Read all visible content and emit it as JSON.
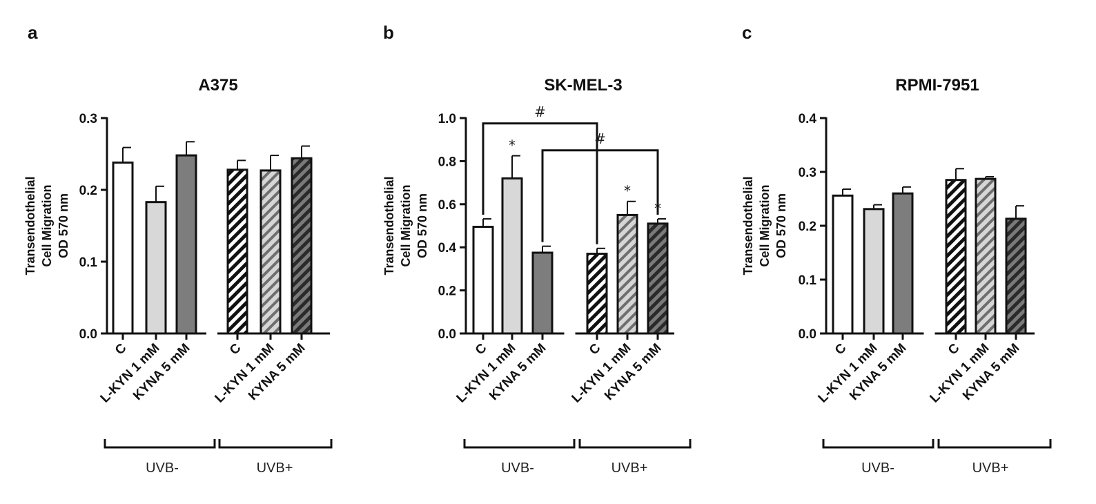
{
  "chart_data": [
    {
      "panel": "a",
      "type": "bar",
      "title": "A375",
      "ylabel_lines": [
        "Transendothelial",
        "Cell Migration",
        "OD 570 nm"
      ],
      "ylim": [
        0,
        0.3
      ],
      "yticks": [
        "0.0",
        "0.1",
        "0.2",
        "0.3"
      ],
      "categories": [
        "C",
        "L-KYN 1 mM",
        "KYNA 5 mM",
        "C",
        "L-KYN 1 mM",
        "KYNA 5 mM"
      ],
      "groups": [
        "UVB-",
        "UVB+"
      ],
      "values": [
        0.238,
        0.183,
        0.248,
        0.228,
        0.227,
        0.244
      ],
      "errors": [
        0.021,
        0.022,
        0.019,
        0.013,
        0.021,
        0.017
      ],
      "fills": [
        "white",
        "light",
        "mid",
        "hatch-white",
        "hatch-light",
        "hatch-dark"
      ],
      "stars": [
        "",
        "",
        "",
        "",
        "",
        ""
      ],
      "brackets": []
    },
    {
      "panel": "b",
      "type": "bar",
      "title": "SK-MEL-3",
      "ylabel_lines": [
        "Transendothelial",
        "Cell Migration",
        "OD 570 nm"
      ],
      "ylim": [
        0,
        1.0
      ],
      "yticks": [
        "0.0",
        "0.2",
        "0.4",
        "0.6",
        "0.8",
        "1.0"
      ],
      "categories": [
        "C",
        "L-KYN 1 mM",
        "KYNA 5 mM",
        "C",
        "L-KYN 1 mM",
        "KYNA 5 mM"
      ],
      "groups": [
        "UVB-",
        "UVB+"
      ],
      "values": [
        0.495,
        0.72,
        0.375,
        0.37,
        0.55,
        0.51
      ],
      "errors": [
        0.037,
        0.105,
        0.03,
        0.025,
        0.063,
        0.022
      ],
      "fills": [
        "white",
        "light",
        "mid",
        "hatch-white",
        "hatch-light",
        "hatch-dark"
      ],
      "stars": [
        "",
        "*",
        "",
        "",
        "*",
        "*"
      ],
      "brackets": [
        {
          "from": 0,
          "to": 3,
          "y": 0.975,
          "label": "#"
        },
        {
          "from": 2,
          "to": 5,
          "y": 0.85,
          "label": "#"
        }
      ]
    },
    {
      "panel": "c",
      "type": "bar",
      "title": "RPMI-7951",
      "ylabel_lines": [
        "Transendothelial",
        "Cell Migration",
        "OD 570 nm"
      ],
      "ylim": [
        0,
        0.4
      ],
      "yticks": [
        "0.0",
        "0.1",
        "0.2",
        "0.3",
        "0.4"
      ],
      "categories": [
        "C",
        "L-KYN 1 mM",
        "KYNA 5 mM",
        "C",
        "L-KYN 1 mM",
        "KYNA 5 mM"
      ],
      "groups": [
        "UVB-",
        "UVB+"
      ],
      "values": [
        0.256,
        0.231,
        0.26,
        0.285,
        0.287,
        0.213
      ],
      "errors": [
        0.012,
        0.008,
        0.012,
        0.021,
        0.004,
        0.024
      ],
      "fills": [
        "white",
        "light",
        "mid",
        "hatch-white",
        "hatch-light",
        "hatch-dark"
      ],
      "stars": [
        "",
        "",
        "",
        "",
        "",
        ""
      ],
      "brackets": []
    }
  ]
}
